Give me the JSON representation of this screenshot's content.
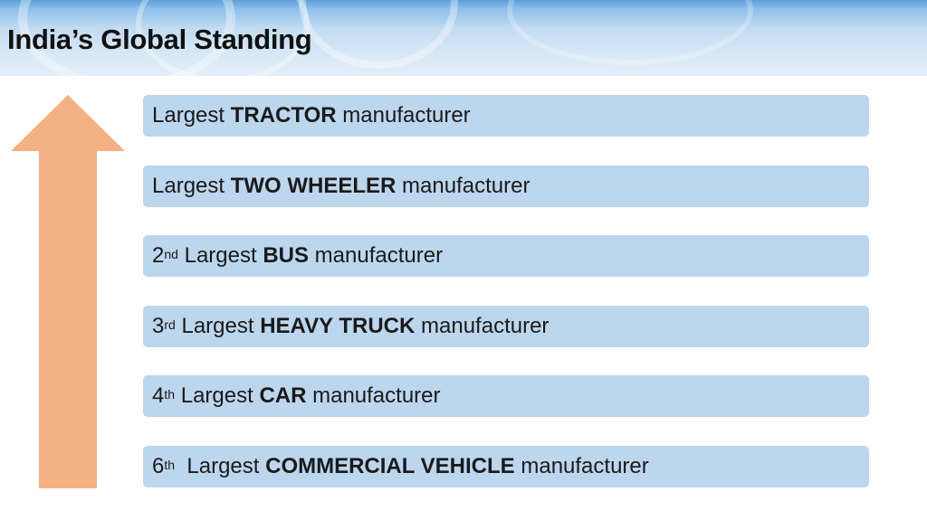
{
  "title": "India’s Global Standing",
  "arrow_color": "#f4b183",
  "box_color": "#bcd6ee",
  "items": [
    {
      "rank": "",
      "suffix": "",
      "prefix": "Largest ",
      "bold": "TRACTOR",
      "rest": " manufacturer"
    },
    {
      "rank": "",
      "suffix": "",
      "prefix": "Largest ",
      "bold": "TWO WHEELER",
      "rest": " manufacturer"
    },
    {
      "rank": "2",
      "suffix": "nd",
      "prefix": " Largest ",
      "bold": "BUS",
      "rest": " manufacturer"
    },
    {
      "rank": "3",
      "suffix": "rd",
      "prefix": " Largest ",
      "bold": "HEAVY TRUCK",
      "rest": " manufacturer"
    },
    {
      "rank": "4",
      "suffix": "th",
      "prefix": " Largest ",
      "bold": "CAR",
      "rest": " manufacturer"
    },
    {
      "rank": "6",
      "suffix": "th",
      "prefix": "  Largest ",
      "bold": "COMMERCIAL VEHICLE",
      "rest": " manufacturer"
    }
  ]
}
